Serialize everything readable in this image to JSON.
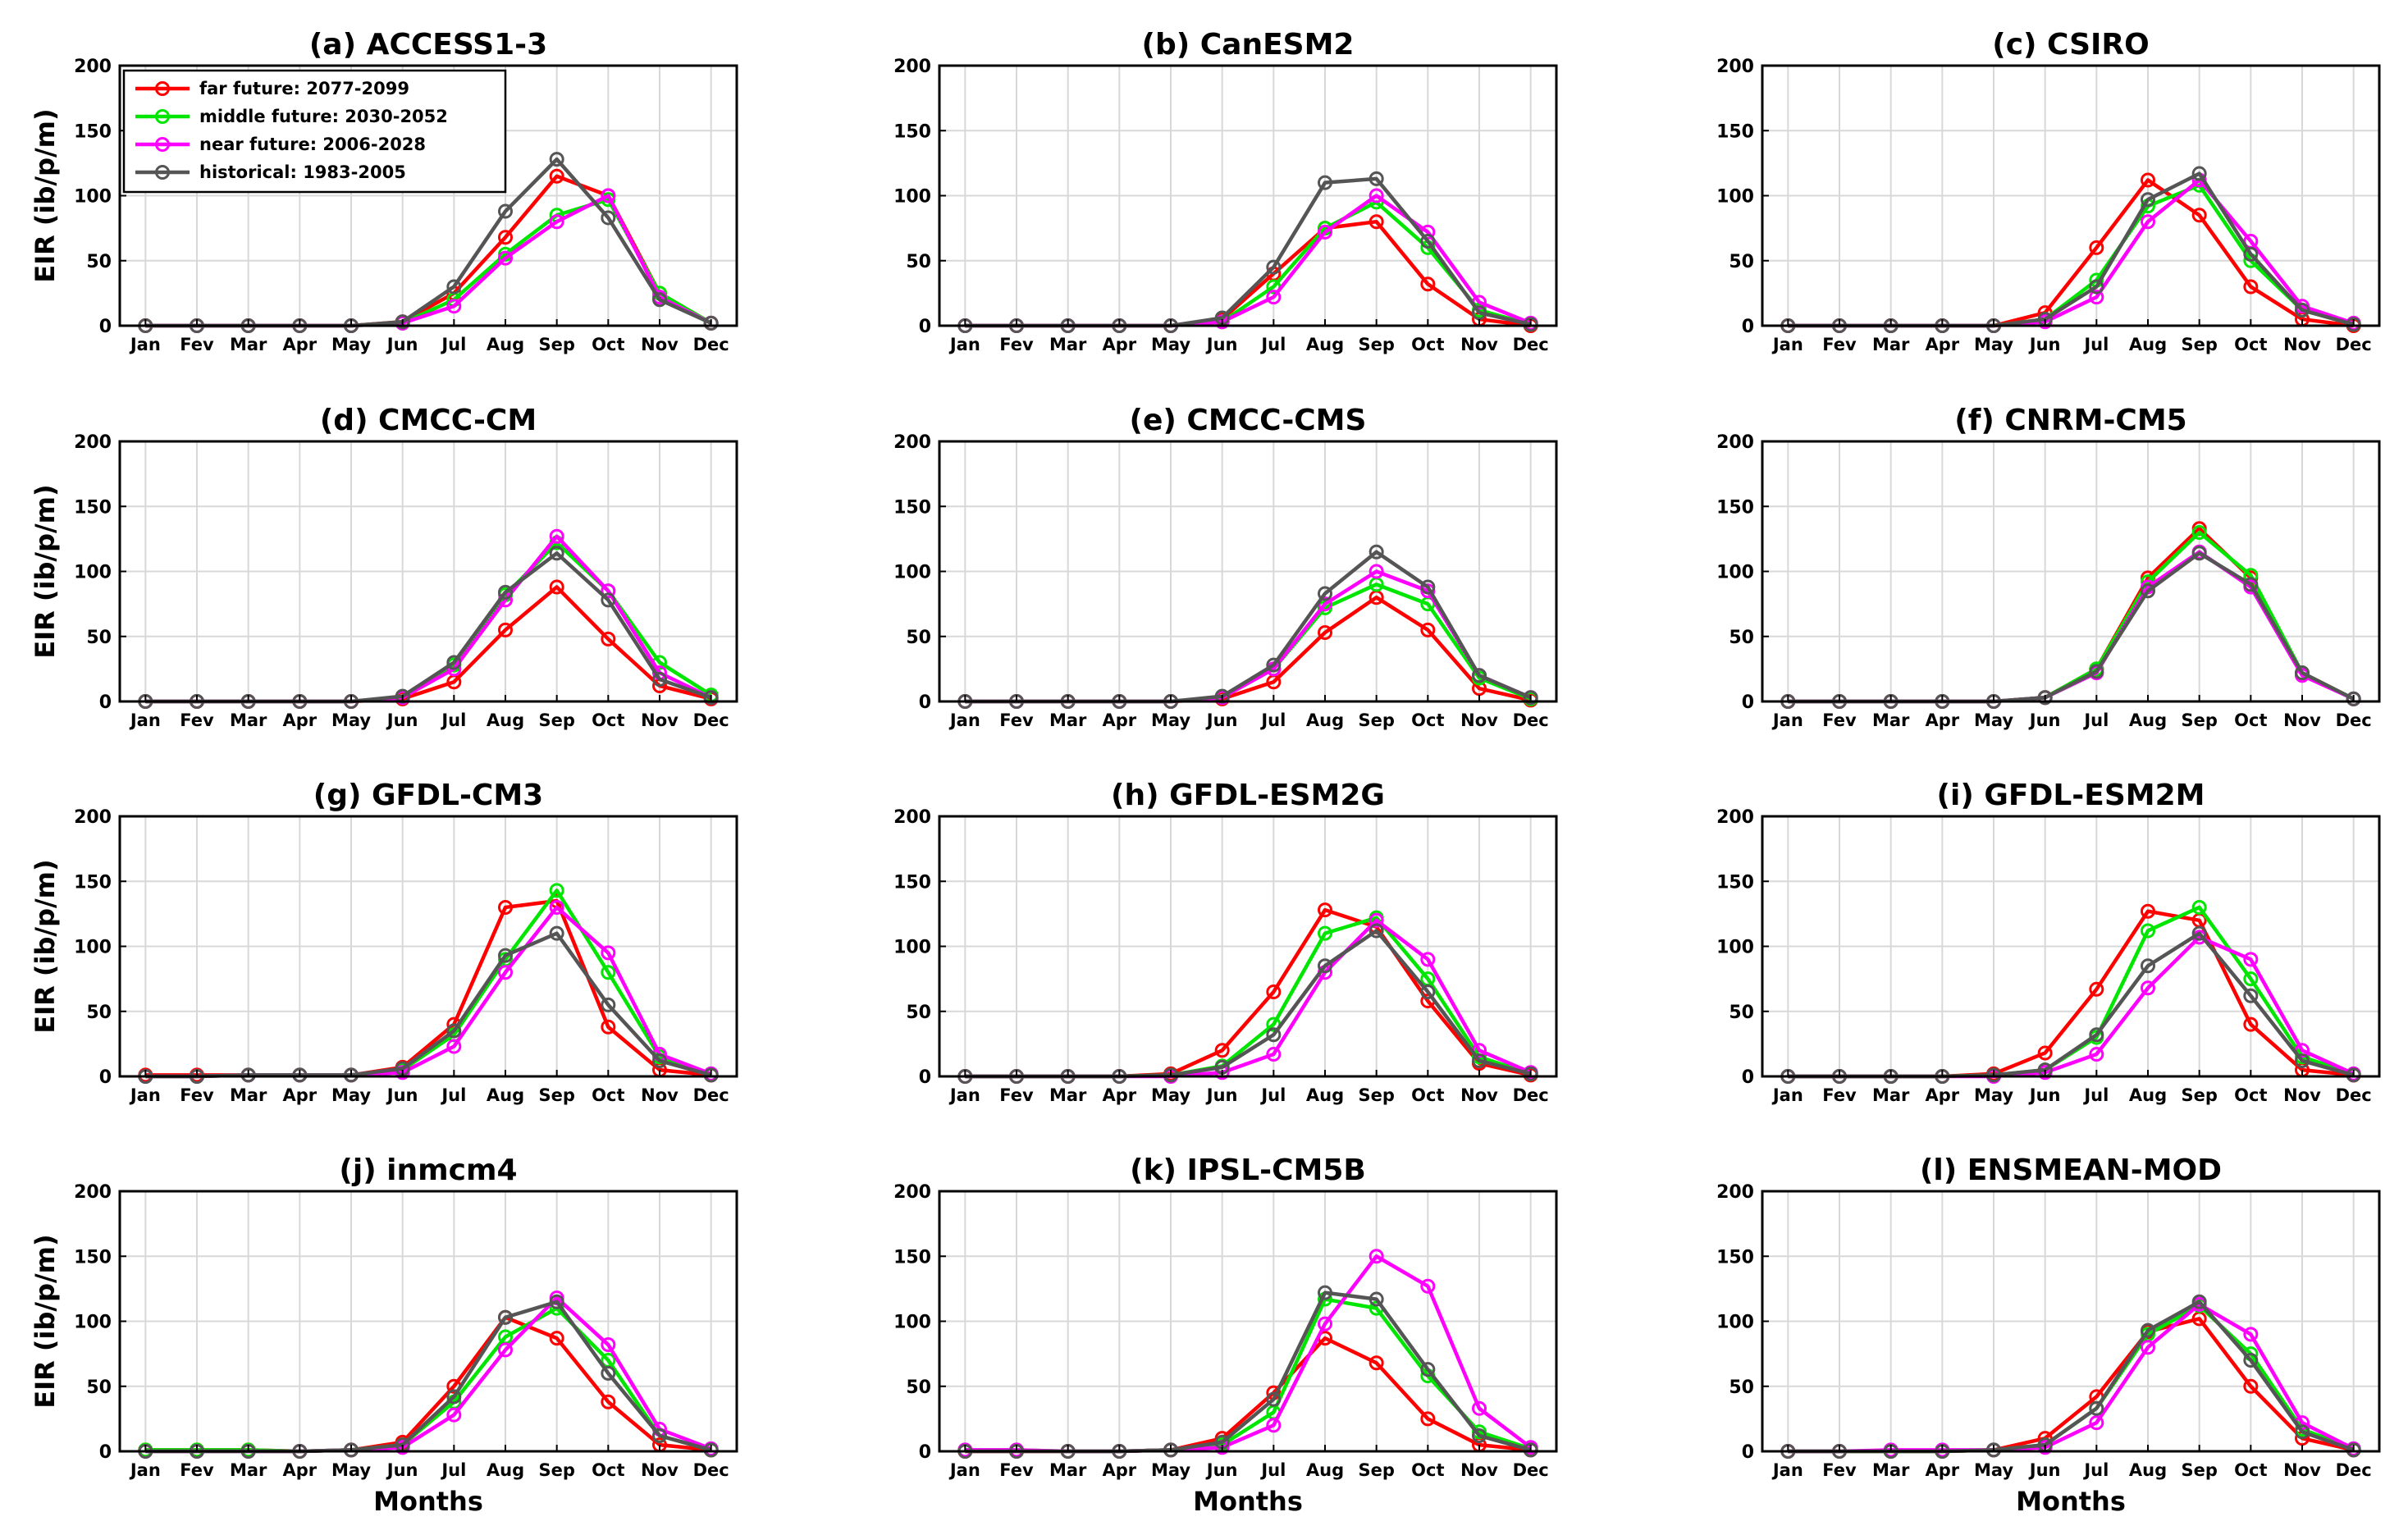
{
  "figure": {
    "ylabel": "EIR (ib/p/m)",
    "xlabel": "Months"
  },
  "legend": [
    {
      "label": "far future: 2077-2099",
      "color": "#ff0000"
    },
    {
      "label": "middle future: 2030-2052",
      "color": "#00e600"
    },
    {
      "label": "near future: 2006-2028",
      "color": "#ff00ff"
    },
    {
      "label": "historical: 1983-2005",
      "color": "#555555"
    }
  ],
  "chart_data": [
    {
      "type": "line",
      "title": "(a) ACCESS1-3",
      "categories": [
        "Jan",
        "Fev",
        "Mar",
        "Apr",
        "May",
        "Jun",
        "Jul",
        "Aug",
        "Sep",
        "Oct",
        "Nov",
        "Dec"
      ],
      "ylim": [
        0,
        200
      ],
      "yticks": [
        0,
        50,
        100,
        150,
        200
      ],
      "xlabel": "",
      "ylabel": "EIR (ib/p/m)",
      "series": [
        {
          "name": "far future: 2077-2099",
          "values": [
            0,
            0,
            0,
            0,
            0,
            3,
            25,
            68,
            115,
            100,
            25,
            2
          ]
        },
        {
          "name": "middle future: 2030-2052",
          "values": [
            0,
            0,
            0,
            0,
            0,
            2,
            20,
            55,
            85,
            97,
            25,
            2
          ]
        },
        {
          "name": "near future: 2006-2028",
          "values": [
            0,
            0,
            0,
            0,
            0,
            2,
            15,
            52,
            80,
            100,
            22,
            2
          ]
        },
        {
          "name": "historical: 1983-2005",
          "values": [
            0,
            0,
            0,
            0,
            0,
            3,
            30,
            88,
            128,
            83,
            20,
            2
          ]
        }
      ]
    },
    {
      "type": "line",
      "title": "(b) CanESM2",
      "categories": [
        "Jan",
        "Fev",
        "Mar",
        "Apr",
        "May",
        "Jun",
        "Jul",
        "Aug",
        "Sep",
        "Oct",
        "Nov",
        "Dec"
      ],
      "ylim": [
        0,
        200
      ],
      "yticks": [
        0,
        50,
        100,
        150,
        200
      ],
      "xlabel": "",
      "ylabel": "",
      "series": [
        {
          "name": "far future: 2077-2099",
          "values": [
            0,
            0,
            0,
            0,
            0,
            5,
            40,
            75,
            80,
            32,
            5,
            0
          ]
        },
        {
          "name": "middle future: 2030-2052",
          "values": [
            0,
            0,
            0,
            0,
            0,
            3,
            30,
            75,
            95,
            60,
            12,
            1
          ]
        },
        {
          "name": "near future: 2006-2028",
          "values": [
            0,
            0,
            0,
            0,
            0,
            3,
            22,
            72,
            100,
            72,
            18,
            2
          ]
        },
        {
          "name": "historical: 1983-2005",
          "values": [
            0,
            0,
            0,
            0,
            0,
            6,
            45,
            110,
            113,
            65,
            10,
            1
          ]
        }
      ]
    },
    {
      "type": "line",
      "title": "(c) CSIRO",
      "categories": [
        "Jan",
        "Fev",
        "Mar",
        "Apr",
        "May",
        "Jun",
        "Jul",
        "Aug",
        "Sep",
        "Oct",
        "Nov",
        "Dec"
      ],
      "ylim": [
        0,
        200
      ],
      "yticks": [
        0,
        50,
        100,
        150,
        200
      ],
      "xlabel": "",
      "ylabel": "",
      "series": [
        {
          "name": "far future: 2077-2099",
          "values": [
            0,
            0,
            0,
            0,
            0,
            10,
            60,
            112,
            85,
            30,
            5,
            0
          ]
        },
        {
          "name": "middle future: 2030-2052",
          "values": [
            0,
            0,
            0,
            0,
            0,
            5,
            35,
            92,
            108,
            50,
            12,
            1
          ]
        },
        {
          "name": "near future: 2006-2028",
          "values": [
            0,
            0,
            0,
            0,
            0,
            3,
            22,
            80,
            112,
            65,
            15,
            2
          ]
        },
        {
          "name": "historical: 1983-2005",
          "values": [
            0,
            0,
            0,
            0,
            0,
            5,
            30,
            97,
            117,
            55,
            12,
            1
          ]
        }
      ]
    },
    {
      "type": "line",
      "title": "(d) CMCC-CM",
      "categories": [
        "Jan",
        "Fev",
        "Mar",
        "Apr",
        "May",
        "Jun",
        "Jul",
        "Aug",
        "Sep",
        "Oct",
        "Nov",
        "Dec"
      ],
      "ylim": [
        0,
        200
      ],
      "yticks": [
        0,
        50,
        100,
        150,
        200
      ],
      "xlabel": "",
      "ylabel": "EIR (ib/p/m)",
      "series": [
        {
          "name": "far future: 2077-2099",
          "values": [
            0,
            0,
            0,
            0,
            0,
            2,
            15,
            55,
            88,
            48,
            12,
            2
          ]
        },
        {
          "name": "middle future: 2030-2052",
          "values": [
            0,
            0,
            0,
            0,
            0,
            3,
            28,
            82,
            122,
            85,
            30,
            5
          ]
        },
        {
          "name": "near future: 2006-2028",
          "values": [
            0,
            0,
            0,
            0,
            0,
            3,
            25,
            78,
            127,
            85,
            22,
            3
          ]
        },
        {
          "name": "historical: 1983-2005",
          "values": [
            0,
            0,
            0,
            0,
            0,
            4,
            30,
            84,
            114,
            78,
            17,
            3
          ]
        }
      ]
    },
    {
      "type": "line",
      "title": "(e) CMCC-CMS",
      "categories": [
        "Jan",
        "Fev",
        "Mar",
        "Apr",
        "May",
        "Jun",
        "Jul",
        "Aug",
        "Sep",
        "Oct",
        "Nov",
        "Dec"
      ],
      "ylim": [
        0,
        200
      ],
      "yticks": [
        0,
        50,
        100,
        150,
        200
      ],
      "xlabel": "",
      "ylabel": "",
      "series": [
        {
          "name": "far future: 2077-2099",
          "values": [
            0,
            0,
            0,
            0,
            0,
            2,
            15,
            53,
            80,
            55,
            10,
            1
          ]
        },
        {
          "name": "middle future: 2030-2052",
          "values": [
            0,
            0,
            0,
            0,
            0,
            3,
            25,
            72,
            90,
            75,
            18,
            2
          ]
        },
        {
          "name": "near future: 2006-2028",
          "values": [
            0,
            0,
            0,
            0,
            0,
            3,
            25,
            75,
            100,
            85,
            20,
            3
          ]
        },
        {
          "name": "historical: 1983-2005",
          "values": [
            0,
            0,
            0,
            0,
            0,
            4,
            28,
            83,
            115,
            88,
            20,
            3
          ]
        }
      ]
    },
    {
      "type": "line",
      "title": "(f) CNRM-CM5",
      "categories": [
        "Jan",
        "Fev",
        "Mar",
        "Apr",
        "May",
        "Jun",
        "Jul",
        "Aug",
        "Sep",
        "Oct",
        "Nov",
        "Dec"
      ],
      "ylim": [
        0,
        200
      ],
      "yticks": [
        0,
        50,
        100,
        150,
        200
      ],
      "xlabel": "",
      "ylabel": "",
      "series": [
        {
          "name": "far future: 2077-2099",
          "values": [
            0,
            0,
            0,
            0,
            0,
            3,
            25,
            95,
            133,
            95,
            22,
            2
          ]
        },
        {
          "name": "middle future: 2030-2052",
          "values": [
            0,
            0,
            0,
            0,
            0,
            3,
            25,
            92,
            130,
            97,
            22,
            2
          ]
        },
        {
          "name": "near future: 2006-2028",
          "values": [
            0,
            0,
            0,
            0,
            0,
            3,
            22,
            88,
            115,
            88,
            20,
            2
          ]
        },
        {
          "name": "historical: 1983-2005",
          "values": [
            0,
            0,
            0,
            0,
            0,
            3,
            23,
            85,
            114,
            90,
            22,
            2
          ]
        }
      ]
    },
    {
      "type": "line",
      "title": "(g) GFDL-CM3",
      "categories": [
        "Jan",
        "Fev",
        "Mar",
        "Apr",
        "May",
        "Jun",
        "Jul",
        "Aug",
        "Sep",
        "Oct",
        "Nov",
        "Dec"
      ],
      "ylim": [
        0,
        200
      ],
      "yticks": [
        0,
        50,
        100,
        150,
        200
      ],
      "xlabel": "",
      "ylabel": "EIR (ib/p/m)",
      "series": [
        {
          "name": "far future: 2077-2099",
          "values": [
            1,
            1,
            1,
            1,
            1,
            7,
            40,
            130,
            135,
            38,
            5,
            1
          ]
        },
        {
          "name": "middle future: 2030-2052",
          "values": [
            0,
            0,
            1,
            1,
            1,
            5,
            32,
            90,
            143,
            80,
            15,
            2
          ]
        },
        {
          "name": "near future: 2006-2028",
          "values": [
            0,
            0,
            1,
            1,
            1,
            3,
            23,
            80,
            130,
            95,
            17,
            2
          ]
        },
        {
          "name": "historical: 1983-2005",
          "values": [
            0,
            0,
            1,
            1,
            1,
            6,
            35,
            93,
            110,
            55,
            12,
            1
          ]
        }
      ]
    },
    {
      "type": "line",
      "title": "(h) GFDL-ESM2G",
      "categories": [
        "Jan",
        "Fev",
        "Mar",
        "Apr",
        "May",
        "Jun",
        "Jul",
        "Aug",
        "Sep",
        "Oct",
        "Nov",
        "Dec"
      ],
      "ylim": [
        0,
        200
      ],
      "yticks": [
        0,
        50,
        100,
        150,
        200
      ],
      "xlabel": "",
      "ylabel": "",
      "series": [
        {
          "name": "far future: 2077-2099",
          "values": [
            0,
            0,
            0,
            0,
            2,
            20,
            65,
            128,
            115,
            58,
            10,
            1
          ]
        },
        {
          "name": "middle future: 2030-2052",
          "values": [
            0,
            0,
            0,
            0,
            1,
            8,
            40,
            110,
            122,
            75,
            15,
            2
          ]
        },
        {
          "name": "near future: 2006-2028",
          "values": [
            0,
            0,
            0,
            0,
            0,
            3,
            17,
            80,
            120,
            90,
            20,
            3
          ]
        },
        {
          "name": "historical: 1983-2005",
          "values": [
            0,
            0,
            0,
            0,
            1,
            7,
            32,
            85,
            112,
            65,
            12,
            2
          ]
        }
      ]
    },
    {
      "type": "line",
      "title": "(i) GFDL-ESM2M",
      "categories": [
        "Jan",
        "Fev",
        "Mar",
        "Apr",
        "May",
        "Jun",
        "Jul",
        "Aug",
        "Sep",
        "Oct",
        "Nov",
        "Dec"
      ],
      "ylim": [
        0,
        200
      ],
      "yticks": [
        0,
        50,
        100,
        150,
        200
      ],
      "xlabel": "",
      "ylabel": "",
      "series": [
        {
          "name": "far future: 2077-2099",
          "values": [
            0,
            0,
            0,
            0,
            2,
            18,
            67,
            127,
            120,
            40,
            5,
            1
          ]
        },
        {
          "name": "middle future: 2030-2052",
          "values": [
            0,
            0,
            0,
            0,
            1,
            5,
            30,
            112,
            130,
            75,
            15,
            2
          ]
        },
        {
          "name": "near future: 2006-2028",
          "values": [
            0,
            0,
            0,
            0,
            0,
            3,
            17,
            68,
            107,
            90,
            20,
            2
          ]
        },
        {
          "name": "historical: 1983-2005",
          "values": [
            0,
            0,
            0,
            0,
            1,
            5,
            32,
            85,
            110,
            62,
            12,
            1
          ]
        }
      ]
    },
    {
      "type": "line",
      "title": "(j) inmcm4",
      "categories": [
        "Jan",
        "Fev",
        "Mar",
        "Apr",
        "May",
        "Jun",
        "Jul",
        "Aug",
        "Sep",
        "Oct",
        "Nov",
        "Dec"
      ],
      "ylim": [
        0,
        200
      ],
      "yticks": [
        0,
        50,
        100,
        150,
        200
      ],
      "xlabel": "Months",
      "ylabel": "EIR (ib/p/m)",
      "series": [
        {
          "name": "far future: 2077-2099",
          "values": [
            1,
            1,
            1,
            0,
            1,
            7,
            50,
            103,
            87,
            38,
            5,
            1
          ]
        },
        {
          "name": "middle future: 2030-2052",
          "values": [
            1,
            1,
            1,
            0,
            1,
            5,
            38,
            88,
            110,
            70,
            12,
            1
          ]
        },
        {
          "name": "near future: 2006-2028",
          "values": [
            0,
            0,
            0,
            0,
            1,
            3,
            28,
            78,
            118,
            82,
            17,
            2
          ]
        },
        {
          "name": "historical: 1983-2005",
          "values": [
            0,
            0,
            0,
            0,
            1,
            5,
            42,
            103,
            115,
            60,
            12,
            1
          ]
        }
      ]
    },
    {
      "type": "line",
      "title": "(k) IPSL-CM5B",
      "categories": [
        "Jan",
        "Fev",
        "Mar",
        "Apr",
        "May",
        "Jun",
        "Jul",
        "Aug",
        "Sep",
        "Oct",
        "Nov",
        "Dec"
      ],
      "ylim": [
        0,
        200
      ],
      "yticks": [
        0,
        50,
        100,
        150,
        200
      ],
      "xlabel": "Months",
      "ylabel": "",
      "series": [
        {
          "name": "far future: 2077-2099",
          "values": [
            0,
            0,
            0,
            0,
            1,
            10,
            45,
            87,
            68,
            25,
            5,
            1
          ]
        },
        {
          "name": "middle future: 2030-2052",
          "values": [
            1,
            1,
            0,
            0,
            1,
            5,
            30,
            117,
            110,
            58,
            15,
            2
          ]
        },
        {
          "name": "near future: 2006-2028",
          "values": [
            1,
            1,
            0,
            0,
            1,
            3,
            20,
            98,
            150,
            127,
            33,
            3
          ]
        },
        {
          "name": "historical: 1983-2005",
          "values": [
            0,
            0,
            0,
            0,
            1,
            7,
            40,
            122,
            117,
            63,
            12,
            1
          ]
        }
      ]
    },
    {
      "type": "line",
      "title": "(l) ENSMEAN-MOD",
      "categories": [
        "Jan",
        "Fev",
        "Mar",
        "Apr",
        "May",
        "Jun",
        "Jul",
        "Aug",
        "Sep",
        "Oct",
        "Nov",
        "Dec"
      ],
      "ylim": [
        0,
        200
      ],
      "yticks": [
        0,
        50,
        100,
        150,
        200
      ],
      "xlabel": "Months",
      "ylabel": "",
      "series": [
        {
          "name": "far future: 2077-2099",
          "values": [
            0,
            0,
            0,
            0,
            1,
            10,
            42,
            92,
            102,
            50,
            10,
            1
          ]
        },
        {
          "name": "middle future: 2030-2052",
          "values": [
            0,
            0,
            0,
            0,
            1,
            5,
            33,
            90,
            112,
            75,
            17,
            2
          ]
        },
        {
          "name": "near future: 2006-2028",
          "values": [
            0,
            0,
            1,
            1,
            1,
            3,
            22,
            80,
            113,
            90,
            22,
            2
          ]
        },
        {
          "name": "historical: 1983-2005",
          "values": [
            0,
            0,
            0,
            0,
            1,
            5,
            33,
            93,
            115,
            70,
            15,
            1
          ]
        }
      ]
    }
  ]
}
